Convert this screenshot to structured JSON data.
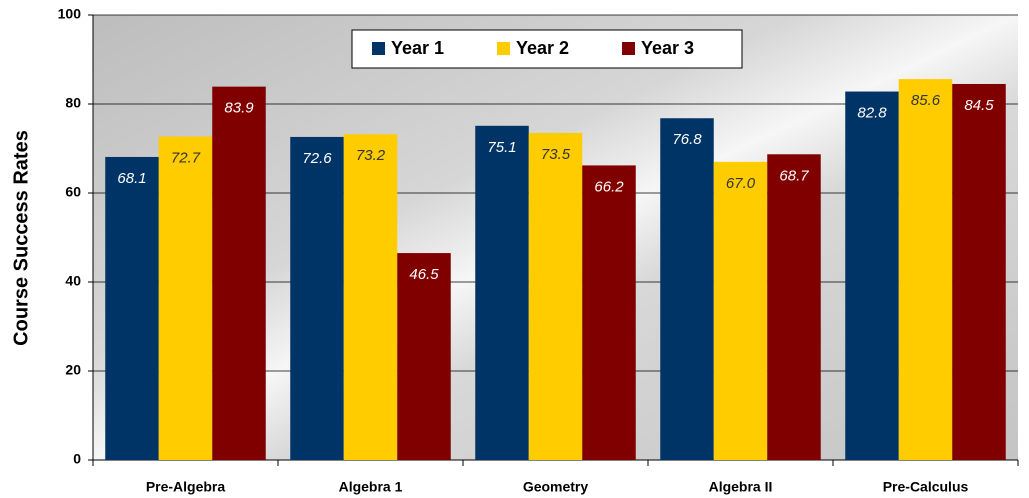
{
  "chart_data": {
    "type": "bar",
    "y_label": "Course Success Rates",
    "categories": [
      "Pre-Algebra",
      "Algebra 1",
      "Geometry",
      "Algebra II",
      "Pre-Calculus"
    ],
    "series": [
      {
        "name": "Year 1",
        "color": "#003366",
        "values": [
          68.1,
          72.6,
          75.1,
          76.8,
          82.8
        ],
        "value_labels": [
          "68.1",
          "72.6",
          "75.1",
          "76.8",
          "82.8"
        ]
      },
      {
        "name": "Year 2",
        "color": "#ffcc00",
        "values": [
          72.7,
          73.2,
          73.5,
          67.0,
          85.6
        ],
        "value_labels": [
          "72.7",
          "73.2",
          "73.5",
          "67.0",
          "85.6"
        ]
      },
      {
        "name": "Year 3",
        "color": "#800000",
        "values": [
          83.9,
          46.5,
          66.2,
          68.7,
          84.5
        ],
        "value_labels": [
          "83.9",
          "46.5",
          "66.2",
          "68.7",
          "84.5"
        ]
      }
    ],
    "ylim": [
      0,
      100
    ],
    "yticks": [
      0,
      20,
      40,
      60,
      80,
      100
    ],
    "grid": true
  }
}
